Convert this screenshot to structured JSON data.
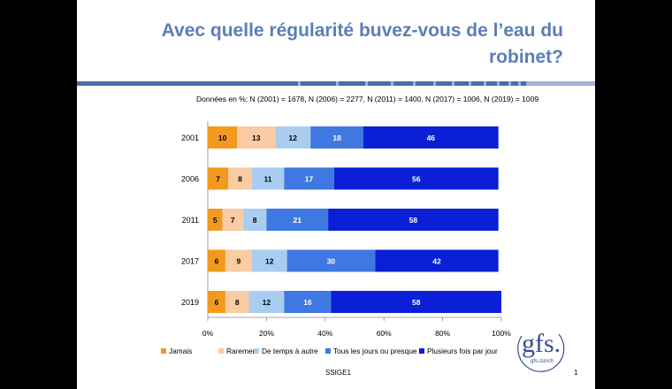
{
  "slide": {
    "title": "Avec quelle régularité buvez-vous de l’eau du robinet?",
    "note": "Données en %; N (2001) = 1678, N (2006) = 2277, N (2011) = 1400, N (2017) = 1006, N (2019) = 1009",
    "footer": "SSIGE1",
    "page_number": "1",
    "logo_text": "gfs.",
    "logo_sub": "gfs-zürich"
  },
  "colors": {
    "title": "#5b7fb5",
    "rule_dark": "#4a6ea8",
    "rule_light": "#9db3d6"
  },
  "chart_data": {
    "type": "bar",
    "orientation": "horizontal",
    "stacked": "percent",
    "categories": [
      "2001",
      "2006",
      "2011",
      "2017",
      "2019"
    ],
    "series": [
      {
        "name": "Jamais",
        "color": "#f29a1f",
        "values": [
          10,
          7,
          5,
          6,
          6
        ]
      },
      {
        "name": "Rarement",
        "color": "#fbcba3",
        "values": [
          13,
          8,
          7,
          9,
          8
        ]
      },
      {
        "name": "De temps à autre",
        "color": "#a9cdf1",
        "values": [
          12,
          11,
          8,
          12,
          12
        ]
      },
      {
        "name": "Tous les jours ou presque",
        "color": "#3f78e0",
        "values": [
          18,
          17,
          21,
          30,
          16
        ]
      },
      {
        "name": "Plusieurs fois par jour",
        "color": "#0a1fd6",
        "values": [
          46,
          56,
          58,
          42,
          58
        ]
      }
    ],
    "xlim": [
      0,
      100
    ],
    "xticks": [
      "0%",
      "20%",
      "40%",
      "60%",
      "80%",
      "100%"
    ],
    "legend_position": "bottom",
    "grid": false
  }
}
